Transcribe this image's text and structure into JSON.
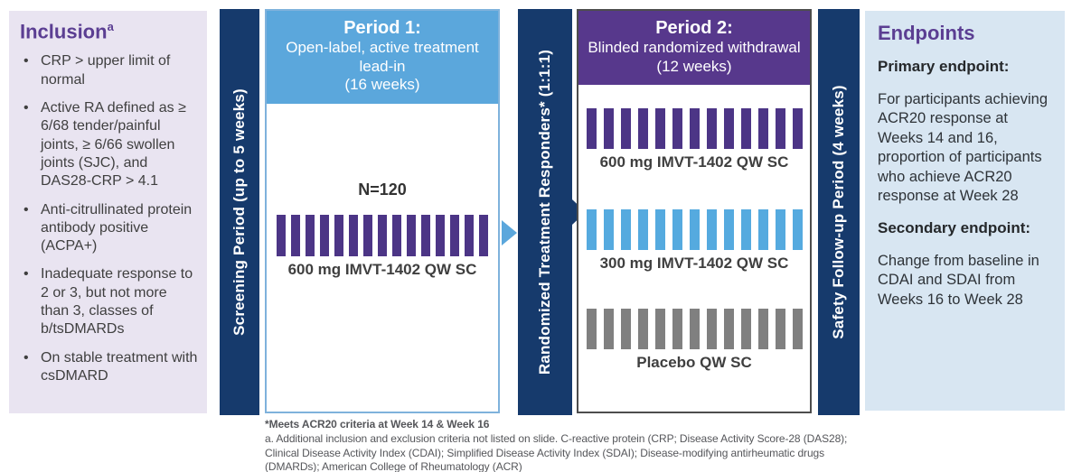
{
  "inclusion": {
    "title": "Inclusion",
    "title_superscript": "a",
    "bullets": [
      "CRP > upper limit of normal",
      "Active RA defined as ≥ 6/68 tender/painful joints, ≥ 6/66 swollen joints (SJC), and DAS28-CRP > 4.1",
      "Anti-citrullinated protein antibody positive (ACPA+)",
      "Inadequate response to 2 or 3, but not more than 3, classes of b/tsDMARDs",
      "On stable treatment with csDMARD"
    ]
  },
  "screening_bar": {
    "label": "Screening Period (up to 5 weeks)"
  },
  "period1": {
    "title": "Period 1:",
    "subtitle": "Open-label, active treatment lead-in",
    "duration": "(16 weeks)",
    "n_label": "N=120",
    "arm": {
      "label": "600 mg IMVT-1402 QW SC",
      "bar_count": 15,
      "bar_color": "#4C3586"
    }
  },
  "randomized_bar": {
    "label": "Randomized Treatment Responders* (1:1:1)"
  },
  "period2": {
    "title": "Period 2:",
    "subtitle": "Blinded randomized withdrawal",
    "duration": "(12 weeks)",
    "arms": [
      {
        "label": "600 mg IMVT-1402 QW SC",
        "bar_count": 13,
        "bar_color": "#4C3586"
      },
      {
        "label": "300 mg IMVT-1402 QW SC",
        "bar_count": 13,
        "bar_color": "#55AADF"
      },
      {
        "label": "Placebo QW SC",
        "bar_count": 13,
        "bar_color": "#808080"
      }
    ]
  },
  "safety_bar": {
    "label": "Safety Follow-up Period (4 weeks)"
  },
  "endpoints": {
    "title": "Endpoints",
    "primary_heading": "Primary endpoint:",
    "primary_text": "For participants achieving ACR20 response at Weeks 14 and 16, proportion of participants who achieve ACR20 response at Week 28",
    "secondary_heading": "Secondary endpoint:",
    "secondary_text": "Change from baseline in CDAI and SDAI from Weeks 16 to Week 28"
  },
  "footnotes": {
    "line1": "*Meets ACR20 criteria at Week 14 & Week 16",
    "line2": "a. Additional inclusion and exclusion criteria not listed on slide. C-reactive protein (CRP; Disease Activity Score-28 (DAS28); Clinical Disease Activity Index (CDAI); Simplified Disease Activity Index (SDAI); Disease-modifying antirheumatic drugs (DMARDs); American College of Rheumatology (ACR)"
  },
  "colors": {
    "navy": "#163A6C",
    "period1_blue": "#5BA7DC",
    "period2_purple": "#57388C",
    "heading_purple": "#5B3E92",
    "inclusion_bg": "#E9E4F1",
    "endpoints_bg": "#D8E6F2",
    "placebo_gray": "#808080"
  }
}
